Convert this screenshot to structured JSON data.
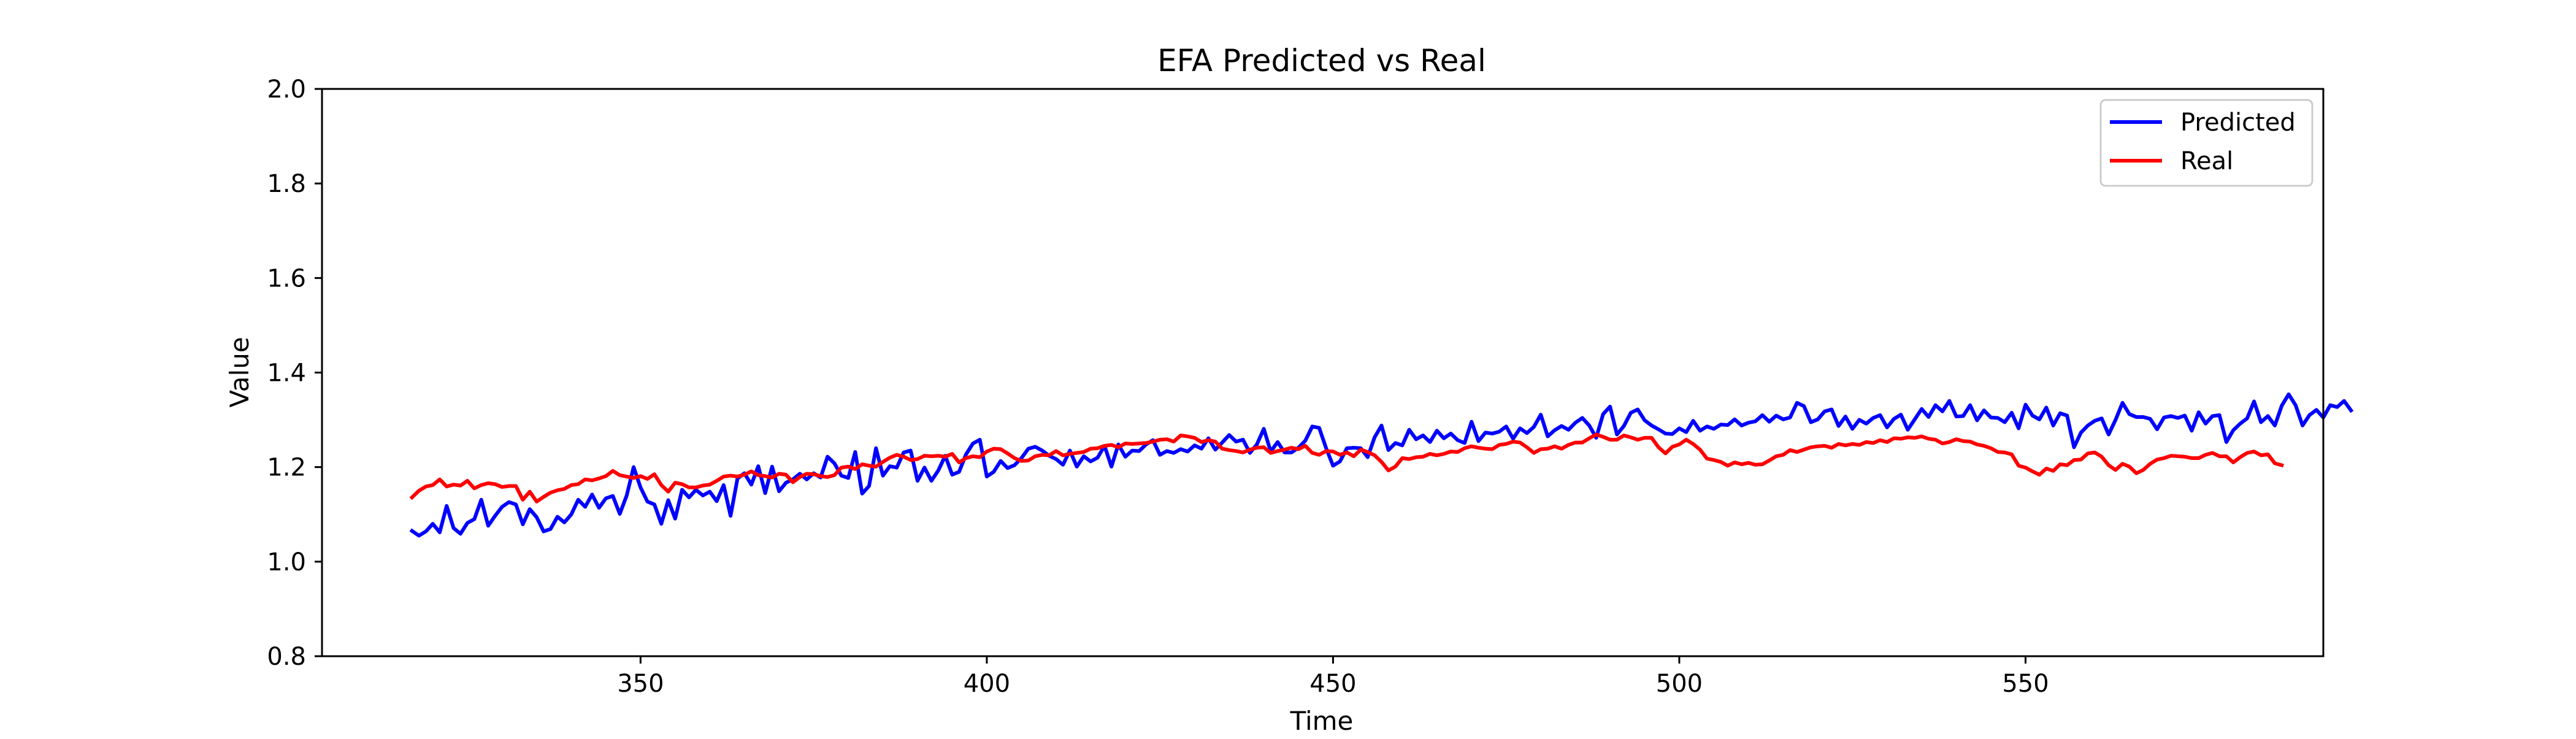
{
  "chart_data": {
    "type": "line",
    "title": "EFA Predicted vs Real",
    "xlabel": "Time",
    "ylabel": "Value",
    "xlim": [
      304,
      593
    ],
    "ylim": [
      0.8,
      2.0
    ],
    "x_ticks": [
      350,
      400,
      450,
      500,
      550
    ],
    "y_ticks": [
      0.8,
      1.0,
      1.2,
      1.4,
      1.6,
      1.8,
      2.0
    ],
    "grid": false,
    "legend_position": "top-right",
    "x_start": 317,
    "x_step": 1,
    "series": [
      {
        "name": "Predicted",
        "color": "#0000ff",
        "values": [
          1.065,
          1.055,
          1.064,
          1.08,
          1.062,
          1.118,
          1.071,
          1.059,
          1.082,
          1.09,
          1.131,
          1.076,
          1.097,
          1.116,
          1.126,
          1.121,
          1.079,
          1.111,
          1.094,
          1.064,
          1.069,
          1.095,
          1.083,
          1.1,
          1.131,
          1.116,
          1.142,
          1.114,
          1.134,
          1.139,
          1.101,
          1.14,
          1.2,
          1.157,
          1.127,
          1.121,
          1.08,
          1.13,
          1.091,
          1.152,
          1.136,
          1.152,
          1.14,
          1.148,
          1.128,
          1.162,
          1.097,
          1.176,
          1.187,
          1.163,
          1.202,
          1.145,
          1.201,
          1.149,
          1.167,
          1.174,
          1.186,
          1.174,
          1.187,
          1.178,
          1.222,
          1.208,
          1.182,
          1.177,
          1.232,
          1.144,
          1.16,
          1.24,
          1.182,
          1.202,
          1.199,
          1.231,
          1.235,
          1.171,
          1.199,
          1.171,
          1.193,
          1.224,
          1.184,
          1.19,
          1.227,
          1.25,
          1.258,
          1.18,
          1.19,
          1.213,
          1.198,
          1.204,
          1.219,
          1.239,
          1.243,
          1.235,
          1.224,
          1.217,
          1.205,
          1.235,
          1.201,
          1.223,
          1.212,
          1.22,
          1.245,
          1.201,
          1.248,
          1.222,
          1.235,
          1.234,
          1.248,
          1.257,
          1.226,
          1.234,
          1.23,
          1.238,
          1.233,
          1.246,
          1.239,
          1.261,
          1.237,
          1.252,
          1.268,
          1.254,
          1.258,
          1.23,
          1.248,
          1.281,
          1.233,
          1.253,
          1.231,
          1.231,
          1.241,
          1.256,
          1.286,
          1.283,
          1.24,
          1.203,
          1.212,
          1.24,
          1.241,
          1.24,
          1.221,
          1.263,
          1.288,
          1.236,
          1.251,
          1.246,
          1.279,
          1.259,
          1.267,
          1.253,
          1.277,
          1.261,
          1.271,
          1.257,
          1.251,
          1.296,
          1.255,
          1.273,
          1.271,
          1.275,
          1.286,
          1.26,
          1.282,
          1.272,
          1.285,
          1.311,
          1.265,
          1.278,
          1.287,
          1.279,
          1.294,
          1.304,
          1.288,
          1.262,
          1.312,
          1.328,
          1.269,
          1.287,
          1.315,
          1.322,
          1.299,
          1.288,
          1.28,
          1.271,
          1.27,
          1.282,
          1.274,
          1.298,
          1.277,
          1.286,
          1.281,
          1.29,
          1.289,
          1.301,
          1.288,
          1.294,
          1.297,
          1.31,
          1.296,
          1.309,
          1.301,
          1.305,
          1.336,
          1.329,
          1.295,
          1.301,
          1.318,
          1.322,
          1.287,
          1.307,
          1.281,
          1.3,
          1.292,
          1.304,
          1.31,
          1.284,
          1.302,
          1.311,
          1.279,
          1.301,
          1.323,
          1.306,
          1.331,
          1.318,
          1.34,
          1.307,
          1.308,
          1.331,
          1.299,
          1.32,
          1.305,
          1.304,
          1.295,
          1.315,
          1.282,
          1.332,
          1.309,
          1.301,
          1.326,
          1.288,
          1.314,
          1.309,
          1.242,
          1.273,
          1.288,
          1.298,
          1.303,
          1.269,
          1.3,
          1.336,
          1.312,
          1.306,
          1.306,
          1.302,
          1.28,
          1.305,
          1.308,
          1.304,
          1.309,
          1.277,
          1.316,
          1.292,
          1.308,
          1.31,
          1.253,
          1.278,
          1.292,
          1.303,
          1.339,
          1.295,
          1.308,
          1.288,
          1.33,
          1.354,
          1.331,
          1.288,
          1.31,
          1.321,
          1.305,
          1.331,
          1.327,
          1.34,
          1.32
        ]
      },
      {
        "name": "Real",
        "color": "#ff0000",
        "values": [
          1.136,
          1.15,
          1.159,
          1.162,
          1.174,
          1.159,
          1.163,
          1.161,
          1.171,
          1.155,
          1.162,
          1.166,
          1.164,
          1.158,
          1.16,
          1.16,
          1.131,
          1.148,
          1.127,
          1.137,
          1.146,
          1.151,
          1.154,
          1.162,
          1.164,
          1.174,
          1.172,
          1.176,
          1.181,
          1.192,
          1.183,
          1.18,
          1.177,
          1.181,
          1.175,
          1.185,
          1.162,
          1.148,
          1.167,
          1.164,
          1.157,
          1.157,
          1.161,
          1.163,
          1.171,
          1.18,
          1.182,
          1.18,
          1.184,
          1.191,
          1.183,
          1.181,
          1.178,
          1.186,
          1.184,
          1.168,
          1.179,
          1.186,
          1.185,
          1.181,
          1.179,
          1.183,
          1.199,
          1.201,
          1.196,
          1.206,
          1.203,
          1.201,
          1.211,
          1.22,
          1.226,
          1.222,
          1.215,
          1.217,
          1.224,
          1.223,
          1.224,
          1.222,
          1.228,
          1.21,
          1.219,
          1.223,
          1.221,
          1.233,
          1.239,
          1.238,
          1.229,
          1.219,
          1.213,
          1.214,
          1.223,
          1.226,
          1.225,
          1.234,
          1.225,
          1.228,
          1.23,
          1.232,
          1.239,
          1.24,
          1.245,
          1.247,
          1.242,
          1.25,
          1.249,
          1.25,
          1.251,
          1.254,
          1.258,
          1.259,
          1.254,
          1.267,
          1.265,
          1.262,
          1.253,
          1.257,
          1.254,
          1.239,
          1.236,
          1.234,
          1.231,
          1.237,
          1.241,
          1.242,
          1.23,
          1.234,
          1.237,
          1.241,
          1.238,
          1.245,
          1.23,
          1.226,
          1.234,
          1.233,
          1.226,
          1.231,
          1.223,
          1.237,
          1.232,
          1.225,
          1.211,
          1.193,
          1.201,
          1.219,
          1.217,
          1.221,
          1.222,
          1.228,
          1.225,
          1.228,
          1.233,
          1.232,
          1.24,
          1.244,
          1.241,
          1.239,
          1.238,
          1.247,
          1.249,
          1.254,
          1.252,
          1.242,
          1.23,
          1.238,
          1.239,
          1.244,
          1.239,
          1.247,
          1.252,
          1.252,
          1.261,
          1.269,
          1.264,
          1.258,
          1.258,
          1.267,
          1.263,
          1.258,
          1.262,
          1.262,
          1.242,
          1.229,
          1.243,
          1.248,
          1.258,
          1.249,
          1.237,
          1.218,
          1.215,
          1.211,
          1.203,
          1.21,
          1.206,
          1.209,
          1.205,
          1.206,
          1.214,
          1.223,
          1.226,
          1.236,
          1.232,
          1.237,
          1.242,
          1.244,
          1.245,
          1.241,
          1.249,
          1.246,
          1.249,
          1.247,
          1.253,
          1.251,
          1.257,
          1.253,
          1.261,
          1.26,
          1.263,
          1.262,
          1.265,
          1.26,
          1.258,
          1.25,
          1.253,
          1.259,
          1.255,
          1.254,
          1.248,
          1.245,
          1.24,
          1.232,
          1.231,
          1.227,
          1.203,
          1.199,
          1.191,
          1.184,
          1.197,
          1.192,
          1.206,
          1.204,
          1.215,
          1.216,
          1.229,
          1.231,
          1.222,
          1.204,
          1.194,
          1.207,
          1.201,
          1.187,
          1.194,
          1.207,
          1.216,
          1.219,
          1.224,
          1.223,
          1.222,
          1.219,
          1.219,
          1.226,
          1.23,
          1.223,
          1.223,
          1.21,
          1.221,
          1.23,
          1.233,
          1.225,
          1.227,
          1.208,
          1.204
        ]
      }
    ]
  }
}
